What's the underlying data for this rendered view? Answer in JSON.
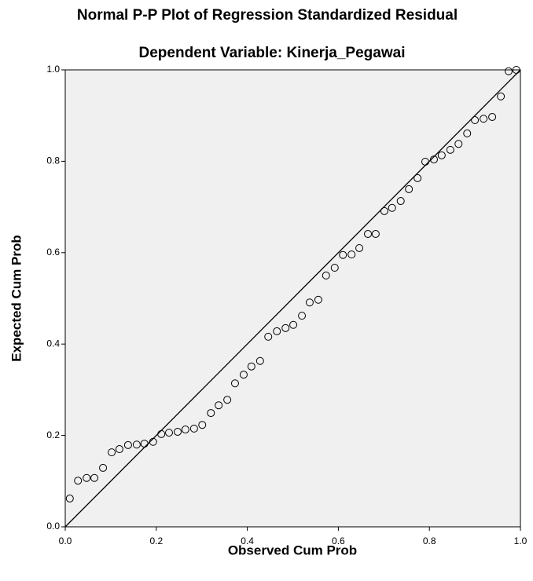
{
  "chart_data": {
    "type": "scatter",
    "title": "Normal P-P Plot of Regression Standardized Residual",
    "subtitle": "Dependent Variable: Kinerja_Pegawai",
    "x_label": "Observed Cum Prob",
    "y_label": "Expected Cum Prob",
    "x": [
      0.01,
      0.028,
      0.047,
      0.064,
      0.083,
      0.102,
      0.119,
      0.138,
      0.157,
      0.174,
      0.193,
      0.211,
      0.228,
      0.247,
      0.264,
      0.283,
      0.301,
      0.32,
      0.337,
      0.356,
      0.373,
      0.392,
      0.409,
      0.428,
      0.446,
      0.465,
      0.484,
      0.501,
      0.52,
      0.537,
      0.556,
      0.573,
      0.592,
      0.61,
      0.629,
      0.646,
      0.665,
      0.682,
      0.701,
      0.718,
      0.737,
      0.755,
      0.774,
      0.791,
      0.81,
      0.827,
      0.846,
      0.864,
      0.883,
      0.9,
      0.919,
      0.938,
      0.957,
      0.974,
      0.991
    ],
    "values": [
      0.062,
      0.101,
      0.107,
      0.107,
      0.129,
      0.163,
      0.17,
      0.179,
      0.18,
      0.182,
      0.186,
      0.203,
      0.206,
      0.208,
      0.213,
      0.215,
      0.223,
      0.249,
      0.266,
      0.278,
      0.314,
      0.333,
      0.351,
      0.363,
      0.416,
      0.428,
      0.435,
      0.442,
      0.462,
      0.491,
      0.497,
      0.55,
      0.567,
      0.595,
      0.596,
      0.61,
      0.641,
      0.641,
      0.691,
      0.698,
      0.713,
      0.739,
      0.763,
      0.799,
      0.804,
      0.813,
      0.825,
      0.838,
      0.861,
      0.89,
      0.893,
      0.897,
      0.942,
      0.997,
      1.0
    ],
    "color": "#000000",
    "xlim": [
      0,
      1
    ],
    "ylim": [
      0,
      1
    ],
    "xticks": [
      {
        "value": 0,
        "label": "0.0"
      },
      0.2,
      0.4,
      0.6,
      0.8,
      {
        "value": 1,
        "label": "1.0"
      }
    ],
    "yticks": [
      {
        "value": 0,
        "label": "0.0"
      },
      0.2,
      0.4,
      0.6,
      0.8,
      {
        "value": 1,
        "label": "1.0"
      }
    ],
    "reference_line": true
  }
}
